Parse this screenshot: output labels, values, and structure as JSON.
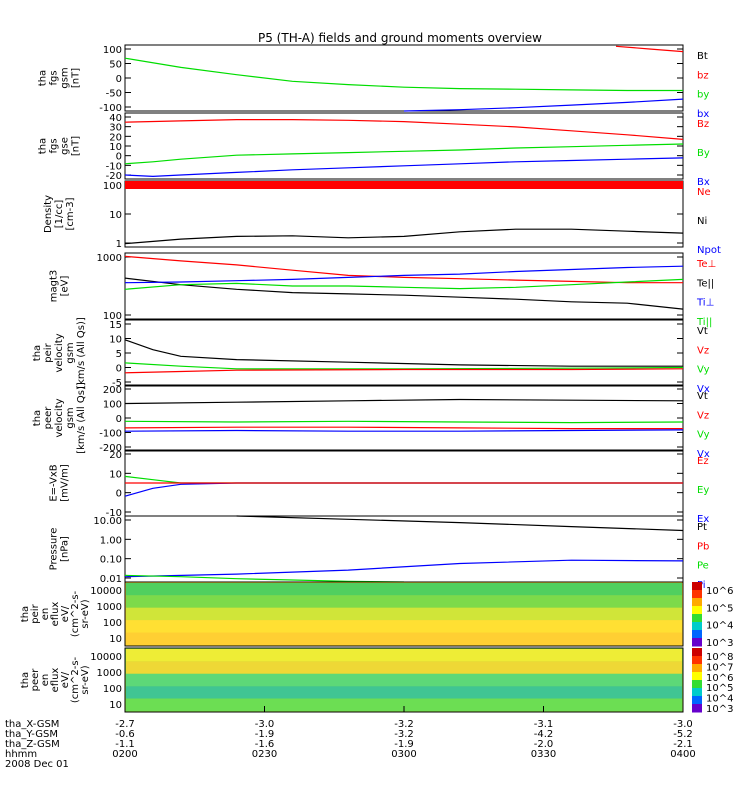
{
  "title": "P5 (TH-A) fields and ground moments overview",
  "colors": {
    "black": "#000000",
    "red": "#ff0000",
    "green": "#00dd00",
    "blue": "#0000ff"
  },
  "chart_data": {
    "type": "line",
    "x_ticks": [
      "0200",
      "0230",
      "0300",
      "0330",
      "0400"
    ],
    "x_row_labels": [
      "tha_X-GSM",
      "tha_Y-GSM",
      "tha_Z-GSM",
      "hhmm",
      "2008 Dec 01"
    ],
    "x_rows": [
      [
        "-2.7",
        "-3.0",
        "-3.2",
        "-3.1",
        "-3.0"
      ],
      [
        "-0.6",
        "-1.9",
        "-3.2",
        "-4.2",
        "-5.2"
      ],
      [
        "-1.1",
        "-1.6",
        "-1.9",
        "-2.0",
        "-2.1"
      ]
    ],
    "panels": [
      {
        "id": "fgs-gsm",
        "ylabel": [
          "tha",
          "fgs",
          "gsm",
          "[nT]"
        ],
        "ticks": [
          "100",
          "50",
          "0",
          "-50",
          "-100"
        ],
        "legend": [
          {
            "text": "Bt",
            "color": "black"
          },
          {
            "text": "bz",
            "color": "red"
          },
          {
            "text": "by",
            "color": "green"
          },
          {
            "text": "bx",
            "color": "blue"
          }
        ],
        "series": [
          {
            "color": "red",
            "x": [
              0.88,
              0.94,
              1.0
            ],
            "y": [
              0.98,
              0.94,
              0.9
            ]
          },
          {
            "color": "green",
            "x": [
              0,
              0.1,
              0.2,
              0.3,
              0.4,
              0.5,
              0.6,
              0.7,
              0.8,
              0.9,
              1.0
            ],
            "y": [
              0.8,
              0.66,
              0.55,
              0.45,
              0.4,
              0.36,
              0.34,
              0.33,
              0.32,
              0.31,
              0.31
            ]
          },
          {
            "color": "blue",
            "x": [
              0.5,
              0.6,
              0.7,
              0.8,
              0.9,
              1.0
            ],
            "y": [
              0.0,
              0.02,
              0.05,
              0.09,
              0.13,
              0.18
            ]
          }
        ]
      },
      {
        "id": "fgs-gse",
        "ylabel": [
          "tha",
          "fgs",
          "gse",
          "[nT]"
        ],
        "ticks": [
          "40",
          "30",
          "20",
          "10",
          "0",
          "-10",
          "-20"
        ],
        "legend": [
          {
            "text": "Bz",
            "color": "red"
          },
          {
            "text": "By",
            "color": "green"
          },
          {
            "text": "Bx",
            "color": "blue"
          }
        ],
        "series": [
          {
            "color": "red",
            "x": [
              0,
              0.1,
              0.2,
              0.3,
              0.4,
              0.5,
              0.6,
              0.7,
              0.8,
              0.9,
              1.0
            ],
            "y": [
              0.86,
              0.88,
              0.9,
              0.9,
              0.89,
              0.87,
              0.83,
              0.79,
              0.73,
              0.67,
              0.6
            ]
          },
          {
            "color": "green",
            "x": [
              0,
              0.05,
              0.1,
              0.15,
              0.2,
              0.3,
              0.4,
              0.5,
              0.6,
              0.7,
              0.8,
              0.9,
              1.0
            ],
            "y": [
              0.23,
              0.26,
              0.3,
              0.33,
              0.36,
              0.38,
              0.4,
              0.42,
              0.44,
              0.47,
              0.49,
              0.51,
              0.53
            ]
          },
          {
            "color": "blue",
            "x": [
              0,
              0.05,
              0.1,
              0.2,
              0.3,
              0.4,
              0.5,
              0.6,
              0.7,
              0.8,
              0.9,
              1.0
            ],
            "y": [
              0.06,
              0.04,
              0.06,
              0.1,
              0.14,
              0.17,
              0.2,
              0.23,
              0.26,
              0.28,
              0.3,
              0.32
            ]
          }
        ]
      },
      {
        "id": "density",
        "ylabel": [
          "Density",
          "[1/cc]",
          "[cm-3]"
        ],
        "ticks": [
          "100",
          "10",
          "1"
        ],
        "legend": [
          {
            "text": "Ne",
            "color": "red"
          },
          {
            "text": "Ni",
            "color": "black"
          },
          {
            "text": "Npot",
            "color": "blue"
          }
        ],
        "series": [
          {
            "color": "black",
            "x": [
              0,
              0.1,
              0.2,
              0.3,
              0.4,
              0.5,
              0.6,
              0.7,
              0.8,
              0.9,
              1.0
            ],
            "y": [
              0.05,
              0.12,
              0.16,
              0.17,
              0.14,
              0.16,
              0.23,
              0.27,
              0.27,
              0.24,
              0.21
            ]
          }
        ]
      },
      {
        "id": "temperature",
        "ylabel": [
          "magt3",
          "[eV]"
        ],
        "ticks": [
          "1000",
          "100"
        ],
        "legend": [
          {
            "text": "Te⊥",
            "color": "red"
          },
          {
            "text": "Te||",
            "color": "black"
          },
          {
            "text": "Ti⊥",
            "color": "blue"
          },
          {
            "text": "Ti||",
            "color": "green"
          }
        ],
        "series": [
          {
            "color": "red",
            "x": [
              0,
              0.1,
              0.2,
              0.3,
              0.4,
              0.5,
              0.6,
              0.7,
              0.8,
              0.9,
              1.0
            ],
            "y": [
              0.95,
              0.88,
              0.82,
              0.74,
              0.66,
              0.63,
              0.61,
              0.59,
              0.57,
              0.55,
              0.55
            ]
          },
          {
            "color": "black",
            "x": [
              0,
              0.1,
              0.2,
              0.3,
              0.4,
              0.5,
              0.6,
              0.7,
              0.8,
              0.9,
              1.0
            ],
            "y": [
              0.62,
              0.52,
              0.45,
              0.4,
              0.38,
              0.36,
              0.33,
              0.3,
              0.26,
              0.24,
              0.15
            ]
          },
          {
            "color": "blue",
            "x": [
              0,
              0.1,
              0.2,
              0.3,
              0.4,
              0.5,
              0.6,
              0.7,
              0.8,
              0.9,
              1.0
            ],
            "y": [
              0.55,
              0.56,
              0.58,
              0.6,
              0.63,
              0.66,
              0.68,
              0.72,
              0.75,
              0.78,
              0.8
            ]
          },
          {
            "color": "green",
            "x": [
              0,
              0.1,
              0.2,
              0.3,
              0.4,
              0.5,
              0.6,
              0.7,
              0.8,
              0.9,
              1.0
            ],
            "y": [
              0.45,
              0.52,
              0.54,
              0.5,
              0.5,
              0.48,
              0.46,
              0.48,
              0.52,
              0.56,
              0.6
            ]
          }
        ]
      },
      {
        "id": "peir-velocity",
        "ylabel": [
          "tha",
          "peir",
          "velocity",
          "gsm",
          "[km/s (All Qs)]"
        ],
        "ticks": [
          "15",
          "10",
          "5",
          "0",
          "-5"
        ],
        "legend": [
          {
            "text": "Vt",
            "color": "black"
          },
          {
            "text": "Vz",
            "color": "red"
          },
          {
            "text": "Vy",
            "color": "green"
          },
          {
            "text": "Vx",
            "color": "blue"
          }
        ],
        "series": [
          {
            "color": "black",
            "x": [
              0,
              0.05,
              0.1,
              0.2,
              0.4,
              0.6,
              0.8,
              1.0
            ],
            "y": [
              0.7,
              0.55,
              0.45,
              0.4,
              0.36,
              0.32,
              0.3,
              0.3
            ]
          },
          {
            "color": "green",
            "x": [
              0,
              0.1,
              0.2,
              0.5,
              0.8,
              1.0
            ],
            "y": [
              0.35,
              0.3,
              0.26,
              0.26,
              0.27,
              0.28
            ]
          },
          {
            "color": "red",
            "x": [
              0,
              0.1,
              0.2,
              0.5,
              0.8,
              1.0
            ],
            "y": [
              0.2,
              0.22,
              0.24,
              0.25,
              0.25,
              0.26
            ]
          }
        ]
      },
      {
        "id": "peer-velocity",
        "ylabel": [
          "tha",
          "peer",
          "velocity",
          "gsm",
          "[km/s (All Qs)]"
        ],
        "ticks": [
          "200",
          "100",
          "0",
          "-100",
          "-200"
        ],
        "legend": [
          {
            "text": "Vt",
            "color": "black"
          },
          {
            "text": "Vz",
            "color": "red"
          },
          {
            "text": "Vy",
            "color": "green"
          },
          {
            "text": "Vx",
            "color": "blue"
          }
        ],
        "series": [
          {
            "color": "black",
            "x": [
              0,
              0.2,
              0.4,
              0.6,
              0.8,
              1.0
            ],
            "y": [
              0.72,
              0.74,
              0.76,
              0.78,
              0.77,
              0.76
            ]
          },
          {
            "color": "green",
            "x": [
              0,
              0.2,
              0.4,
              0.6,
              0.8,
              1.0
            ],
            "y": [
              0.45,
              0.44,
              0.45,
              0.44,
              0.43,
              0.44
            ]
          },
          {
            "color": "red",
            "x": [
              0,
              0.2,
              0.4,
              0.6,
              0.8,
              1.0
            ],
            "y": [
              0.35,
              0.36,
              0.36,
              0.35,
              0.34,
              0.34
            ]
          },
          {
            "color": "blue",
            "x": [
              0,
              0.2,
              0.4,
              0.6,
              0.8,
              1.0
            ],
            "y": [
              0.3,
              0.31,
              0.3,
              0.3,
              0.31,
              0.32
            ]
          }
        ]
      },
      {
        "id": "efield",
        "ylabel": [
          "E=-VxB",
          "[mV/m]"
        ],
        "ticks": [
          "20",
          "10",
          "0",
          "-10"
        ],
        "legend": [
          {
            "text": "Ez",
            "color": "red"
          },
          {
            "text": "Ey",
            "color": "green"
          },
          {
            "text": "Ex",
            "color": "blue"
          }
        ],
        "series": [
          {
            "color": "green",
            "x": [
              0,
              0.05,
              0.1,
              0.2,
              0.5,
              1.0
            ],
            "y": [
              0.6,
              0.55,
              0.5,
              0.5,
              0.5,
              0.5
            ]
          },
          {
            "color": "blue",
            "x": [
              0,
              0.05,
              0.1,
              0.2,
              0.5,
              1.0
            ],
            "y": [
              0.3,
              0.42,
              0.48,
              0.5,
              0.5,
              0.5
            ]
          },
          {
            "color": "red",
            "x": [
              0,
              0.5,
              1.0
            ],
            "y": [
              0.5,
              0.5,
              0.5
            ]
          }
        ]
      },
      {
        "id": "pressure",
        "ylabel": [
          "Pressure",
          "[nPa]"
        ],
        "ticks": [
          "10.00",
          "1.00",
          "0.10",
          "0.01"
        ],
        "legend": [
          {
            "text": "Pt",
            "color": "black"
          },
          {
            "text": "Pb",
            "color": "red"
          },
          {
            "text": "Pe",
            "color": "green"
          },
          {
            "text": "Pi",
            "color": "blue"
          }
        ],
        "series": [
          {
            "color": "black",
            "x": [
              0.2,
              0.4,
              0.6,
              0.8,
              1.0
            ],
            "y": [
              1.0,
              0.95,
              0.9,
              0.84,
              0.78
            ]
          },
          {
            "color": "blue",
            "x": [
              0,
              0.2,
              0.4,
              0.6,
              0.8,
              1.0
            ],
            "y": [
              0.08,
              0.12,
              0.18,
              0.28,
              0.33,
              0.32
            ]
          },
          {
            "color": "green",
            "x": [
              0,
              0.1,
              0.2,
              0.3,
              0.4,
              0.5
            ],
            "y": [
              0.1,
              0.08,
              0.05,
              0.03,
              0.01,
              0.0
            ]
          }
        ]
      }
    ],
    "spectrograms": [
      {
        "id": "peir-en-eflux",
        "ylabel": [
          "tha",
          "peir",
          "en",
          "eflux",
          "eV/",
          "(cm^2-s-",
          "sr-eV)"
        ],
        "ticks": [
          "10000",
          "1000",
          "100",
          "10"
        ],
        "colorbar_ticks": [
          "10^6",
          "10^5",
          "10^4",
          "10^3"
        ]
      },
      {
        "id": "peer-en-eflux",
        "ylabel": [
          "tha",
          "peer",
          "en",
          "eflux",
          "eV/",
          "(cm^2-s-",
          "sr-eV)"
        ],
        "ticks": [
          "10000",
          "1000",
          "100",
          "10"
        ],
        "colorbar_ticks": [
          "10^8",
          "10^7",
          "10^6",
          "10^5",
          "10^4",
          "10^3"
        ]
      }
    ]
  }
}
